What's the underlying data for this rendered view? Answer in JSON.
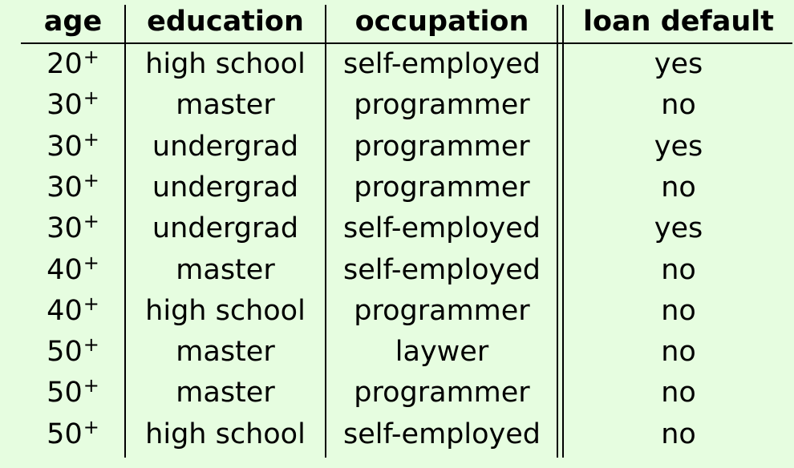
{
  "table": {
    "headers": {
      "age": "age",
      "education": "education",
      "occupation": "occupation",
      "loan_default": "loan default"
    },
    "rows": [
      {
        "age": "20",
        "age_suffix": "+",
        "education": "high school",
        "occupation": "self-employed",
        "loan_default": "yes"
      },
      {
        "age": "30",
        "age_suffix": "+",
        "education": "master",
        "occupation": "programmer",
        "loan_default": "no"
      },
      {
        "age": "30",
        "age_suffix": "+",
        "education": "undergrad",
        "occupation": "programmer",
        "loan_default": "yes"
      },
      {
        "age": "30",
        "age_suffix": "+",
        "education": "undergrad",
        "occupation": "programmer",
        "loan_default": "no"
      },
      {
        "age": "30",
        "age_suffix": "+",
        "education": "undergrad",
        "occupation": "self-employed",
        "loan_default": "yes"
      },
      {
        "age": "40",
        "age_suffix": "+",
        "education": "master",
        "occupation": "self-employed",
        "loan_default": "no"
      },
      {
        "age": "40",
        "age_suffix": "+",
        "education": "high school",
        "occupation": "programmer",
        "loan_default": "no"
      },
      {
        "age": "50",
        "age_suffix": "+",
        "education": "master",
        "occupation": "laywer",
        "loan_default": "no"
      },
      {
        "age": "50",
        "age_suffix": "+",
        "education": "master",
        "occupation": "programmer",
        "loan_default": "no"
      },
      {
        "age": "50",
        "age_suffix": "+",
        "education": "high school",
        "occupation": "self-employed",
        "loan_default": "no"
      }
    ]
  },
  "colors": {
    "background": "#e6fde0",
    "text": "#000000"
  }
}
